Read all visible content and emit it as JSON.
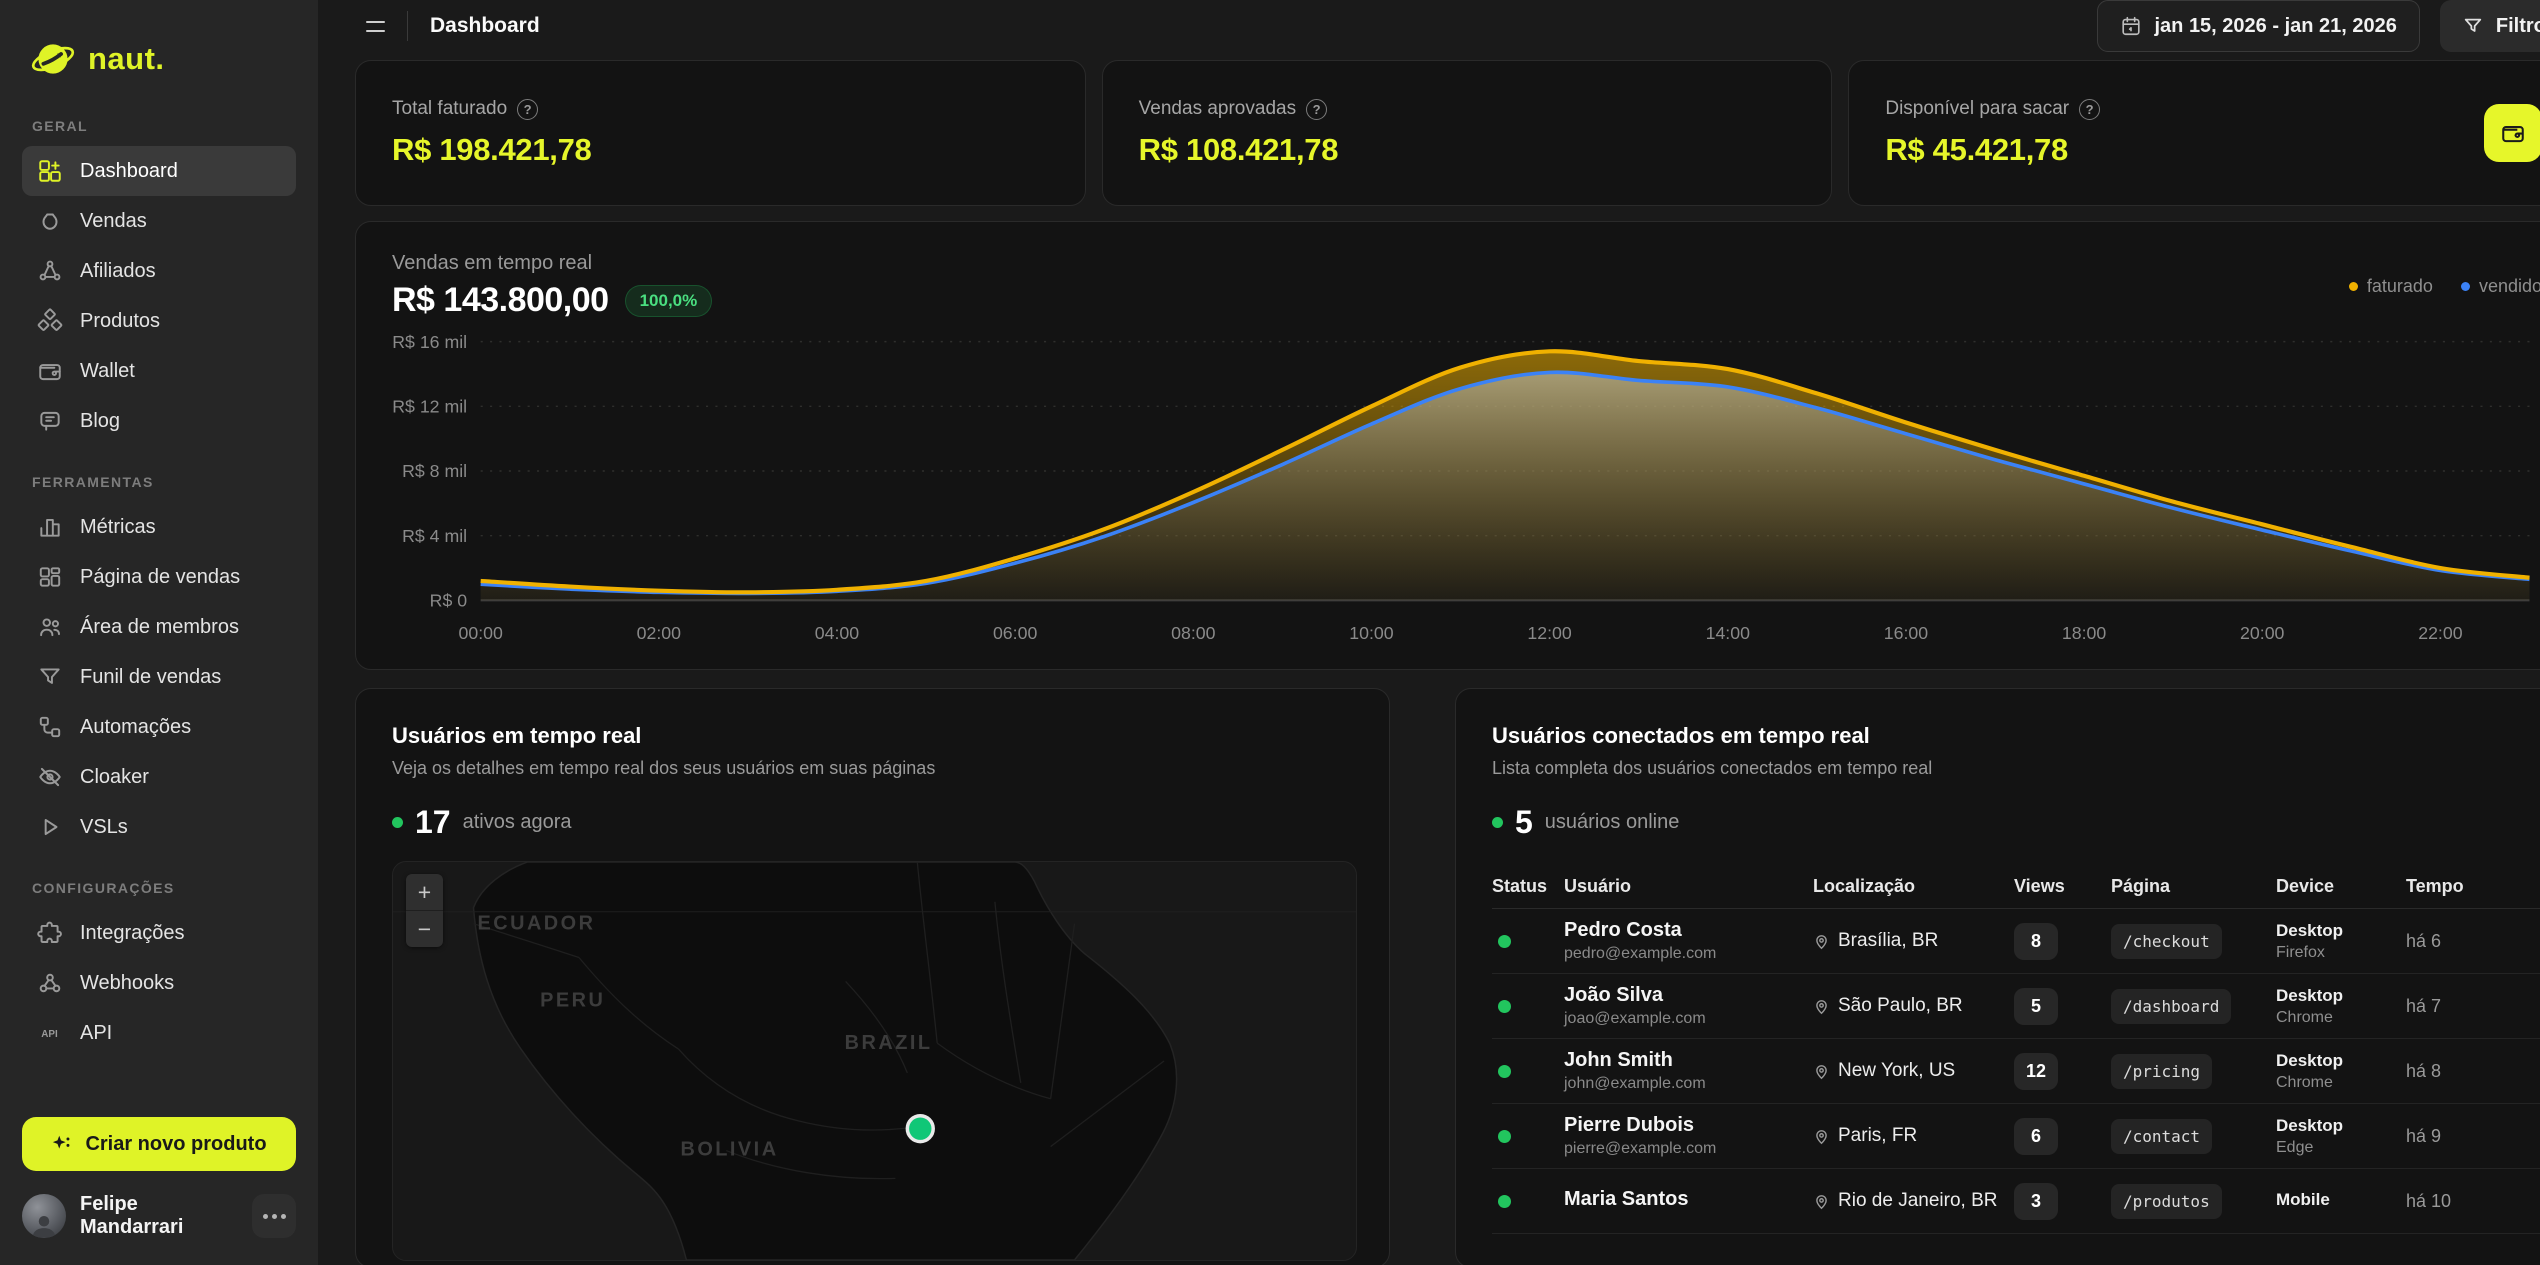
{
  "colors": {
    "accent": "#e6f62a",
    "logo_yellow": "#dff327",
    "faturado": "#f0b100",
    "vendido": "#3b82f6",
    "green": "#22c55e",
    "badge_green": "#4ade80",
    "marker_green": "#10c777"
  },
  "sidebar": {
    "logo_text": "naut.",
    "sections": [
      {
        "label": "GERAL",
        "items": [
          {
            "label": "Dashboard",
            "icon": "dashboard",
            "active": true
          },
          {
            "label": "Vendas",
            "icon": "money-bag"
          },
          {
            "label": "Afiliados",
            "icon": "network"
          },
          {
            "label": "Produtos",
            "icon": "cubes"
          },
          {
            "label": "Wallet",
            "icon": "wallet"
          },
          {
            "label": "Blog",
            "icon": "chat"
          }
        ]
      },
      {
        "label": "FERRAMENTAS",
        "items": [
          {
            "label": "Métricas",
            "icon": "bar-chart"
          },
          {
            "label": "Página de vendas",
            "icon": "layout"
          },
          {
            "label": "Área de membros",
            "icon": "users"
          },
          {
            "label": "Funil de vendas",
            "icon": "funnel"
          },
          {
            "label": "Automações",
            "icon": "workflow"
          },
          {
            "label": "Cloaker",
            "icon": "eye-off"
          },
          {
            "label": "VSLs",
            "icon": "play"
          }
        ]
      },
      {
        "label": "CONFIGURAÇÕES",
        "items": [
          {
            "label": "Integrações",
            "icon": "puzzle"
          },
          {
            "label": "Webhooks",
            "icon": "webhook"
          },
          {
            "label": "API",
            "icon": "api"
          }
        ]
      }
    ],
    "cta_label": "Criar novo produto",
    "user": {
      "name": "Felipe Mandarrari"
    }
  },
  "topbar": {
    "title": "Dashboard",
    "date_range": "jan 15, 2026 - jan 21, 2026",
    "filters_label": "Filtros"
  },
  "stats": [
    {
      "label": "Total faturado",
      "value": "R$ 198.421,78"
    },
    {
      "label": "Vendas aprovadas",
      "value": "R$ 108.421,78"
    },
    {
      "label": "Disponível para sacar",
      "value": "R$ 45.421,78"
    }
  ],
  "chart_card": {
    "label": "Vendas em tempo real",
    "value": "R$ 143.800,00",
    "badge": "100,0%"
  },
  "chart_data": {
    "type": "area",
    "categories": [
      "00:00",
      "01:00",
      "02:00",
      "03:00",
      "04:00",
      "05:00",
      "06:00",
      "07:00",
      "08:00",
      "09:00",
      "10:00",
      "11:00",
      "12:00",
      "13:00",
      "14:00",
      "15:00",
      "16:00",
      "17:00",
      "18:00",
      "19:00",
      "20:00",
      "21:00",
      "22:00",
      "23:00"
    ],
    "tick_labels": [
      "00:00",
      "02:00",
      "04:00",
      "06:00",
      "08:00",
      "10:00",
      "12:00",
      "14:00",
      "16:00",
      "18:00",
      "20:00",
      "22:00"
    ],
    "series": [
      {
        "name": "faturado",
        "color": "#f0b100",
        "values": [
          1200,
          850,
          600,
          500,
          650,
          1200,
          2600,
          4400,
          6700,
          9300,
          12000,
          14400,
          15400,
          14800,
          14300,
          12800,
          11000,
          9300,
          7700,
          6100,
          4700,
          3300,
          2000,
          1400
        ]
      },
      {
        "name": "vendido",
        "color": "#3b82f6",
        "values": [
          1000,
          700,
          500,
          430,
          560,
          1050,
          2300,
          3950,
          6050,
          8400,
          10900,
          13100,
          14100,
          13600,
          13200,
          11900,
          10300,
          8700,
          7200,
          5700,
          4350,
          3050,
          1850,
          1300
        ]
      }
    ],
    "ylim": [
      0,
      16000
    ],
    "y_ticks": [
      {
        "value": 16000,
        "label": "R$ 16 mil"
      },
      {
        "value": 12000,
        "label": "R$ 12 mil"
      },
      {
        "value": 8000,
        "label": "R$ 8 mil"
      },
      {
        "value": 4000,
        "label": "R$ 4 mil"
      },
      {
        "value": 0,
        "label": "R$ 0"
      }
    ],
    "grid": "dotted-horizontal",
    "legend_position": "top-right"
  },
  "realtime_users": {
    "title": "Usuários em tempo real",
    "subtitle": "Veja os detalhes em tempo real dos seus usuários em suas páginas",
    "count": "17",
    "count_suffix": "ativos agora",
    "map_labels": [
      "ECUADOR",
      "PERU",
      "BRAZIL",
      "BOLIVIA"
    ],
    "zoom_in": "+",
    "zoom_out": "−"
  },
  "connected_users": {
    "title": "Usuários conectados em tempo real",
    "subtitle": "Lista completa dos usuários conectados em tempo real",
    "count": "5",
    "count_suffix": "usuários online",
    "columns": [
      "Status",
      "Usuário",
      "Localização",
      "Views",
      "Página",
      "Device",
      "Tempo"
    ],
    "rows": [
      {
        "name": "Pedro Costa",
        "email": "pedro@example.com",
        "location": "Brasília, BR",
        "views": "8",
        "page": "/checkout",
        "device": "Desktop",
        "browser": "Firefox",
        "time": "há 6"
      },
      {
        "name": "João Silva",
        "email": "joao@example.com",
        "location": "São Paulo, BR",
        "views": "5",
        "page": "/dashboard",
        "device": "Desktop",
        "browser": "Chrome",
        "time": "há 7"
      },
      {
        "name": "John Smith",
        "email": "john@example.com",
        "location": "New York, US",
        "views": "12",
        "page": "/pricing",
        "device": "Desktop",
        "browser": "Chrome",
        "time": "há 8"
      },
      {
        "name": "Pierre Dubois",
        "email": "pierre@example.com",
        "location": "Paris, FR",
        "views": "6",
        "page": "/contact",
        "device": "Desktop",
        "browser": "Edge",
        "time": "há 9"
      },
      {
        "name": "Maria Santos",
        "email": "",
        "location": "Rio de Janeiro, BR",
        "views": "3",
        "page": "/produtos",
        "device": "Mobile",
        "browser": "",
        "time": "há 10"
      }
    ]
  }
}
